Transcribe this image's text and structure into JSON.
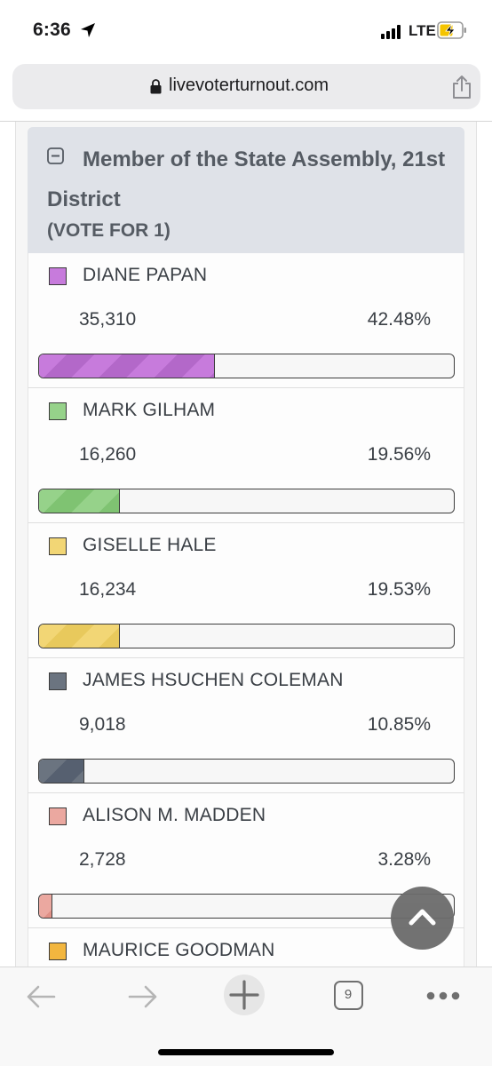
{
  "status_bar": {
    "time": "6:36",
    "network": "LTE"
  },
  "browser": {
    "url": "livevoterturnout.com",
    "tab_count": "9"
  },
  "race": {
    "title": "Member of the State Assembly, 21st District",
    "subtitle": "(VOTE FOR 1)",
    "candidates": [
      {
        "name": "DIANE PAPAN",
        "votes": "35,310",
        "percent": "42.48%",
        "share": 0.4248,
        "color": "#c77bdc",
        "stripe": "#b368c9"
      },
      {
        "name": "MARK GILHAM",
        "votes": "16,260",
        "percent": "19.56%",
        "share": 0.1956,
        "color": "#96d28a",
        "stripe": "#7fc372"
      },
      {
        "name": "GISELLE HALE",
        "votes": "16,234",
        "percent": "19.53%",
        "share": 0.1953,
        "color": "#f2d675",
        "stripe": "#e8c95c"
      },
      {
        "name": "JAMES HSUCHEN COLEMAN",
        "votes": "9,018",
        "percent": "10.85%",
        "share": 0.1085,
        "color": "#6b7480",
        "stripe": "#566070"
      },
      {
        "name": "ALISON M. MADDEN",
        "votes": "2,728",
        "percent": "3.28%",
        "share": 0.0328,
        "color": "#eba8a0",
        "stripe": "#e09086"
      },
      {
        "name": "MAURICE GOODMAN",
        "votes": "",
        "percent": "",
        "share": 0,
        "color": "#f2b63f",
        "stripe": "#e6a82c"
      }
    ]
  },
  "icons": {
    "location": "location-arrow-icon",
    "lock": "lock-icon",
    "share": "share-icon",
    "collapse": "collapse-minus-icon",
    "scroll_top": "chevron-up-icon",
    "back": "back-arrow-icon",
    "forward": "forward-arrow-icon",
    "new_tab": "plus-icon",
    "more": "more-dots-icon"
  }
}
